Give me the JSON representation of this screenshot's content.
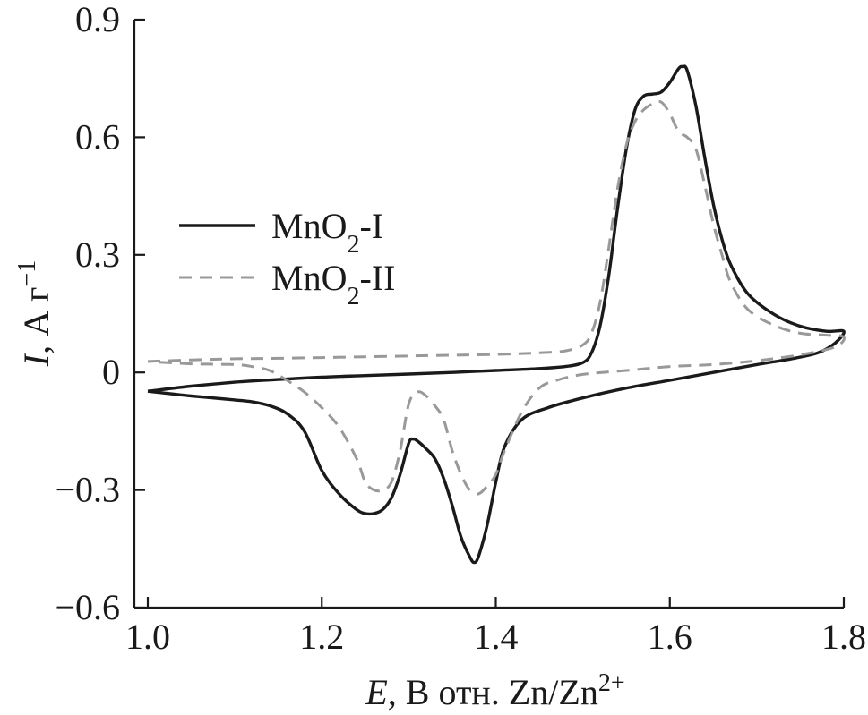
{
  "chart_data": {
    "type": "line",
    "xlabel": {
      "var": "E",
      "rest": ", В отн. Zn/Zn",
      "sup": "2+"
    },
    "ylabel": {
      "var": "I",
      "rest": ", А г",
      "sup": "−1"
    },
    "xlim": [
      1.0,
      1.8
    ],
    "ylim": [
      -0.6,
      0.9
    ],
    "x_ticks": [
      {
        "value": 1.0,
        "label": "1.0"
      },
      {
        "value": 1.2,
        "label": "1.2"
      },
      {
        "value": 1.4,
        "label": "1.4"
      },
      {
        "value": 1.6,
        "label": "1.6"
      },
      {
        "value": 1.8,
        "label": "1.8"
      }
    ],
    "y_ticks": [
      {
        "value": -0.6,
        "label": "−0.6"
      },
      {
        "value": -0.3,
        "label": "−0.3"
      },
      {
        "value": 0,
        "label": "0"
      },
      {
        "value": 0.3,
        "label": "0.3"
      },
      {
        "value": 0.6,
        "label": "0.6"
      },
      {
        "value": 0.9,
        "label": "0.9"
      }
    ],
    "grid": false,
    "legend_position": "left",
    "series": [
      {
        "name": {
          "base": "MnO",
          "sub": "2",
          "suffix": "-I"
        },
        "style": "solid",
        "color": "#1a1a1a",
        "points": [
          [
            1.0,
            -0.048
          ],
          [
            1.05,
            -0.035
          ],
          [
            1.1,
            -0.025
          ],
          [
            1.15,
            -0.018
          ],
          [
            1.2,
            -0.012
          ],
          [
            1.25,
            -0.008
          ],
          [
            1.3,
            -0.004
          ],
          [
            1.35,
            0.0
          ],
          [
            1.4,
            0.005
          ],
          [
            1.45,
            0.01
          ],
          [
            1.48,
            0.015
          ],
          [
            1.5,
            0.025
          ],
          [
            1.51,
            0.05
          ],
          [
            1.52,
            0.12
          ],
          [
            1.53,
            0.25
          ],
          [
            1.54,
            0.42
          ],
          [
            1.55,
            0.57
          ],
          [
            1.56,
            0.67
          ],
          [
            1.57,
            0.705
          ],
          [
            1.58,
            0.71
          ],
          [
            1.59,
            0.715
          ],
          [
            1.6,
            0.74
          ],
          [
            1.61,
            0.775
          ],
          [
            1.615,
            0.78
          ],
          [
            1.62,
            0.77
          ],
          [
            1.63,
            0.68
          ],
          [
            1.64,
            0.55
          ],
          [
            1.65,
            0.43
          ],
          [
            1.66,
            0.34
          ],
          [
            1.67,
            0.275
          ],
          [
            1.69,
            0.2
          ],
          [
            1.72,
            0.148
          ],
          [
            1.75,
            0.118
          ],
          [
            1.78,
            0.105
          ],
          [
            1.8,
            0.105
          ],
          [
            1.79,
            0.075
          ],
          [
            1.77,
            0.05
          ],
          [
            1.74,
            0.035
          ],
          [
            1.7,
            0.02
          ],
          [
            1.65,
            0.0
          ],
          [
            1.6,
            -0.02
          ],
          [
            1.55,
            -0.04
          ],
          [
            1.5,
            -0.065
          ],
          [
            1.46,
            -0.09
          ],
          [
            1.43,
            -0.12
          ],
          [
            1.41,
            -0.19
          ],
          [
            1.4,
            -0.28
          ],
          [
            1.39,
            -0.39
          ],
          [
            1.38,
            -0.47
          ],
          [
            1.375,
            -0.485
          ],
          [
            1.37,
            -0.47
          ],
          [
            1.36,
            -0.42
          ],
          [
            1.35,
            -0.34
          ],
          [
            1.34,
            -0.27
          ],
          [
            1.33,
            -0.22
          ],
          [
            1.32,
            -0.195
          ],
          [
            1.31,
            -0.175
          ],
          [
            1.305,
            -0.17
          ],
          [
            1.3,
            -0.18
          ],
          [
            1.29,
            -0.26
          ],
          [
            1.28,
            -0.32
          ],
          [
            1.27,
            -0.35
          ],
          [
            1.26,
            -0.36
          ],
          [
            1.25,
            -0.36
          ],
          [
            1.24,
            -0.35
          ],
          [
            1.22,
            -0.31
          ],
          [
            1.2,
            -0.25
          ],
          [
            1.18,
            -0.15
          ],
          [
            1.16,
            -0.105
          ],
          [
            1.14,
            -0.085
          ],
          [
            1.12,
            -0.075
          ],
          [
            1.1,
            -0.07
          ],
          [
            1.05,
            -0.06
          ],
          [
            1.0,
            -0.048
          ]
        ]
      },
      {
        "name": {
          "base": "MnO",
          "sub": "2",
          "suffix": "-II"
        },
        "style": "dashed",
        "color": "#999999",
        "points": [
          [
            1.0,
            0.028
          ],
          [
            1.05,
            0.032
          ],
          [
            1.1,
            0.035
          ],
          [
            1.15,
            0.036
          ],
          [
            1.2,
            0.038
          ],
          [
            1.25,
            0.04
          ],
          [
            1.3,
            0.042
          ],
          [
            1.35,
            0.044
          ],
          [
            1.4,
            0.046
          ],
          [
            1.45,
            0.05
          ],
          [
            1.48,
            0.055
          ],
          [
            1.5,
            0.07
          ],
          [
            1.51,
            0.1
          ],
          [
            1.52,
            0.18
          ],
          [
            1.53,
            0.32
          ],
          [
            1.54,
            0.47
          ],
          [
            1.55,
            0.58
          ],
          [
            1.56,
            0.64
          ],
          [
            1.57,
            0.67
          ],
          [
            1.58,
            0.685
          ],
          [
            1.59,
            0.69
          ],
          [
            1.6,
            0.66
          ],
          [
            1.61,
            0.615
          ],
          [
            1.62,
            0.6
          ],
          [
            1.63,
            0.57
          ],
          [
            1.64,
            0.48
          ],
          [
            1.65,
            0.38
          ],
          [
            1.66,
            0.3
          ],
          [
            1.67,
            0.23
          ],
          [
            1.69,
            0.16
          ],
          [
            1.72,
            0.12
          ],
          [
            1.75,
            0.1
          ],
          [
            1.78,
            0.095
          ],
          [
            1.8,
            0.09
          ],
          [
            1.79,
            0.065
          ],
          [
            1.75,
            0.045
          ],
          [
            1.7,
            0.03
          ],
          [
            1.65,
            0.02
          ],
          [
            1.6,
            0.015
          ],
          [
            1.55,
            0.005
          ],
          [
            1.5,
            -0.005
          ],
          [
            1.47,
            -0.02
          ],
          [
            1.45,
            -0.04
          ],
          [
            1.43,
            -0.1
          ],
          [
            1.41,
            -0.2
          ],
          [
            1.4,
            -0.26
          ],
          [
            1.39,
            -0.29
          ],
          [
            1.38,
            -0.31
          ],
          [
            1.37,
            -0.3
          ],
          [
            1.36,
            -0.26
          ],
          [
            1.35,
            -0.2
          ],
          [
            1.34,
            -0.12
          ],
          [
            1.33,
            -0.085
          ],
          [
            1.32,
            -0.06
          ],
          [
            1.31,
            -0.05
          ],
          [
            1.3,
            -0.08
          ],
          [
            1.29,
            -0.2
          ],
          [
            1.28,
            -0.28
          ],
          [
            1.27,
            -0.3
          ],
          [
            1.26,
            -0.3
          ],
          [
            1.25,
            -0.28
          ],
          [
            1.24,
            -0.22
          ],
          [
            1.22,
            -0.14
          ],
          [
            1.2,
            -0.09
          ],
          [
            1.18,
            -0.05
          ],
          [
            1.16,
            -0.02
          ],
          [
            1.14,
            0.005
          ],
          [
            1.12,
            0.015
          ],
          [
            1.1,
            0.02
          ],
          [
            1.05,
            0.022
          ],
          [
            1.0,
            0.028
          ]
        ]
      }
    ]
  }
}
